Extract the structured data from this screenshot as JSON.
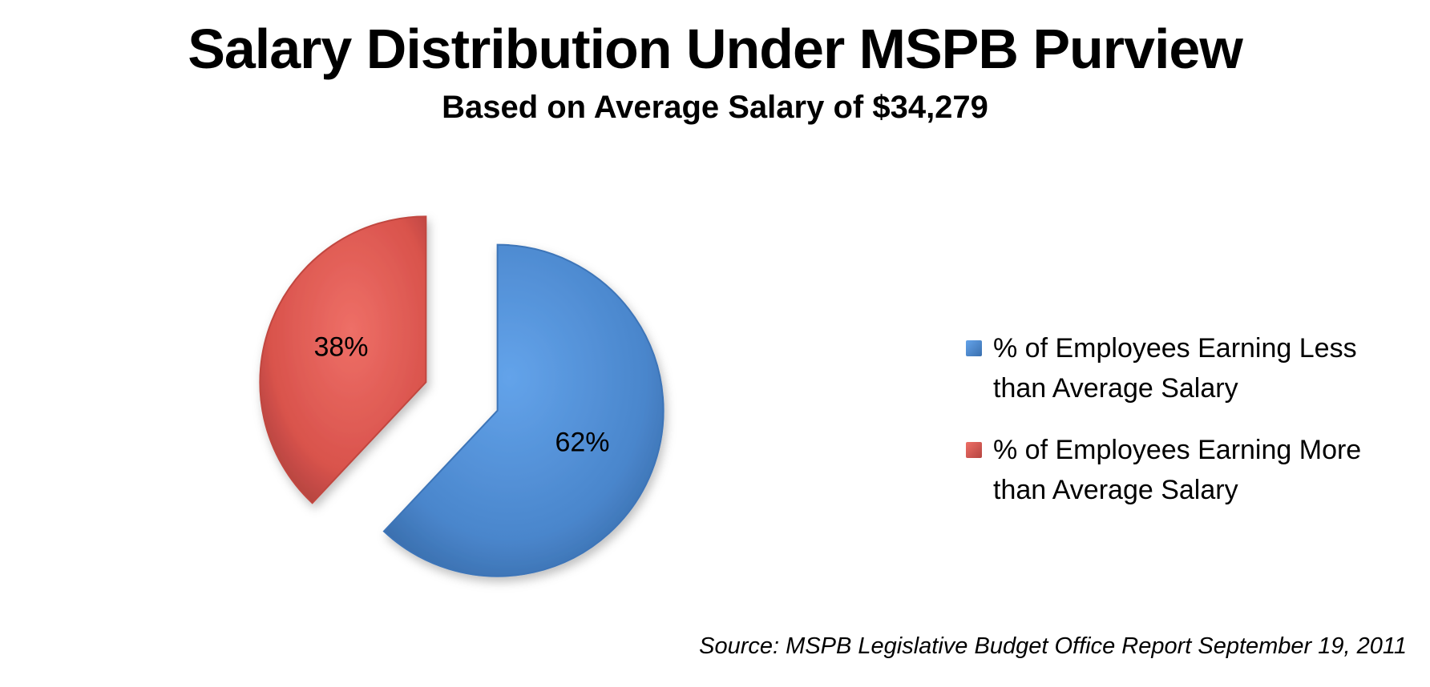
{
  "colors": {
    "blue": "#4a86cc",
    "blue_light": "#63a3ea",
    "blue_dark": "#3a6fae",
    "red": "#d9534c",
    "red_light": "#ee6f67",
    "red_dark": "#b54440"
  },
  "chart_data": {
    "type": "pie",
    "title": "Salary Distribution Under MSPB Purview",
    "subtitle": "Based on Average Salary of $34,279",
    "source": "Source: MSPB Legislative Budget Office Report September 19, 2011",
    "legend_position": "right",
    "slices": [
      {
        "label": "% of Employees Earning Less than Average Salary",
        "legend_lines": [
          "% of Employees Earning Less",
          "than Average Salary"
        ],
        "value": 62,
        "data_label": "62%",
        "color": "#4a86cc",
        "exploded": true
      },
      {
        "label": "% of Employees Earning More than Average Salary",
        "legend_lines": [
          "% of Employees Earning More",
          "than Average Salary"
        ],
        "value": 38,
        "data_label": "38%",
        "color": "#d9534c",
        "exploded": true
      }
    ]
  }
}
